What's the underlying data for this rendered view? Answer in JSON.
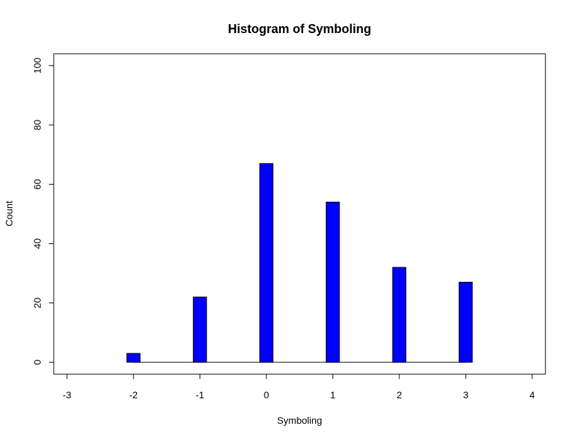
{
  "chart_data": {
    "type": "bar",
    "title": "Histogram of Symboling",
    "xlabel": "Symboling",
    "ylabel": "Count",
    "xlim": [
      -3.2,
      4.2
    ],
    "ylim": [
      -4,
      104
    ],
    "x_ticks": [
      "-3",
      "-2",
      "-1",
      "0",
      "1",
      "2",
      "3",
      "4"
    ],
    "y_ticks": [
      "0",
      "20",
      "40",
      "60",
      "80",
      "100"
    ],
    "bars": [
      {
        "x": -2,
        "value": 3
      },
      {
        "x": -1,
        "value": 22
      },
      {
        "x": 0,
        "value": 67
      },
      {
        "x": 1,
        "value": 54
      },
      {
        "x": 2,
        "value": 32
      },
      {
        "x": 3,
        "value": 27
      }
    ],
    "baseline_range": [
      -2,
      3
    ],
    "bar_color": "#0000ff",
    "edge_color": "#000000",
    "grid": false
  }
}
